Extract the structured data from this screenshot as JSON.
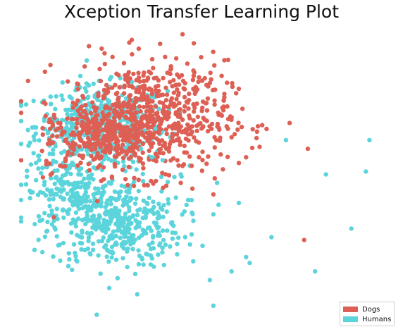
{
  "chart_data": {
    "type": "scatter",
    "title": "Xception Transfer Learning Plot",
    "xlabel": "",
    "ylabel": "",
    "grid": false,
    "axes_visible": false,
    "xlim": [
      0,
      100
    ],
    "ylim": [
      0,
      100
    ],
    "legend": {
      "placement": "bottom-right"
    },
    "series": [
      {
        "name": "Dogs",
        "color": "#de5f54",
        "clusters": [
          {
            "cx": 35,
            "cy": 70,
            "sx": 11,
            "sy": 10,
            "n": 620
          },
          {
            "cx": 20,
            "cy": 63,
            "sx": 7,
            "sy": 6,
            "n": 150
          }
        ],
        "points": [
          [
            56,
            90
          ],
          [
            42,
            83
          ],
          [
            56,
            77
          ],
          [
            61,
            73
          ],
          [
            60,
            80
          ],
          [
            74,
            68
          ],
          [
            65,
            65
          ],
          [
            58,
            63
          ],
          [
            60,
            54
          ],
          [
            55,
            57
          ],
          [
            79,
            59
          ],
          [
            49,
            56
          ],
          [
            53,
            43
          ],
          [
            78,
            27
          ],
          [
            43,
            85
          ],
          [
            52,
            82
          ],
          [
            49,
            84
          ],
          [
            58,
            70
          ],
          [
            55,
            71
          ],
          [
            57,
            66
          ],
          [
            45,
            60
          ],
          [
            50,
            55
          ],
          [
            47,
            53
          ],
          [
            62,
            56
          ],
          [
            8,
            66
          ],
          [
            6,
            49
          ],
          [
            7,
            54
          ],
          [
            9,
            35
          ],
          [
            7,
            30
          ],
          [
            40,
            46
          ],
          [
            44,
            47
          ]
        ]
      },
      {
        "name": "Humans",
        "color": "#5bd4db",
        "clusters": [
          {
            "cx": 22,
            "cy": 67,
            "sx": 9,
            "sy": 7,
            "n": 500
          },
          {
            "cx": 26,
            "cy": 33,
            "sx": 9,
            "sy": 8,
            "n": 420
          },
          {
            "cx": 13,
            "cy": 44,
            "sx": 6,
            "sy": 6,
            "n": 150
          }
        ],
        "points": [
          [
            96,
            62
          ],
          [
            95,
            51
          ],
          [
            84,
            50
          ],
          [
            91,
            31
          ],
          [
            81,
            16
          ],
          [
            73,
            62
          ],
          [
            60,
            40
          ],
          [
            54,
            47
          ],
          [
            53,
            36
          ],
          [
            47,
            29
          ],
          [
            43,
            22
          ],
          [
            50,
            25
          ],
          [
            62,
            21
          ],
          [
            69,
            28
          ],
          [
            63,
            19
          ],
          [
            42,
            32
          ],
          [
            32,
            8
          ],
          [
            52,
            13
          ],
          [
            53,
            4
          ],
          [
            58,
            16
          ],
          [
            45,
            37
          ],
          [
            47,
            41
          ],
          [
            44,
            50
          ],
          [
            39,
            55
          ],
          [
            33,
            59
          ],
          [
            36,
            56
          ],
          [
            37,
            66
          ],
          [
            7,
            30
          ],
          [
            5,
            55
          ]
        ]
      }
    ]
  }
}
